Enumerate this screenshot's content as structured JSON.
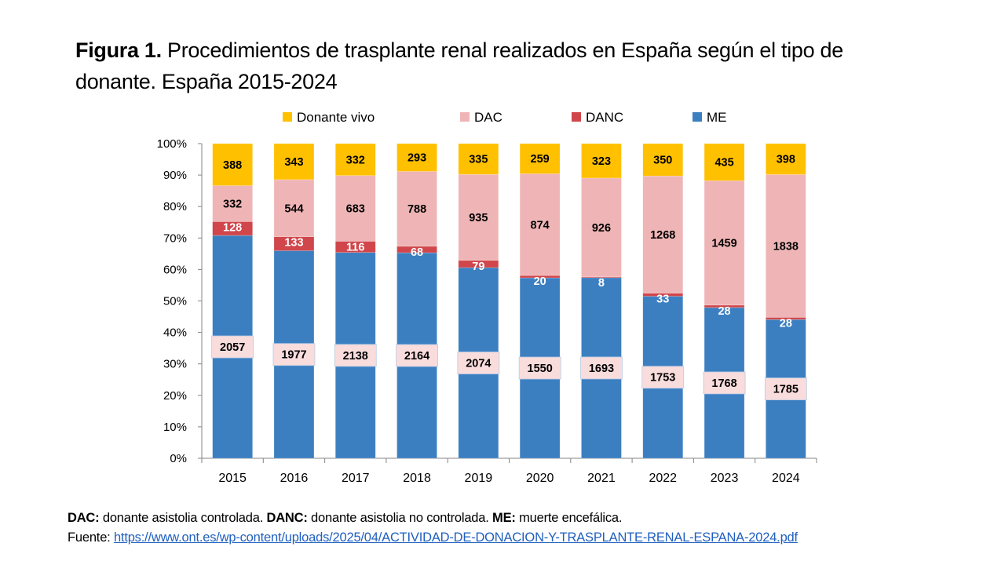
{
  "title": {
    "bold": "Figura 1.",
    "text": " Procedimientos de trasplante renal realizados en España según el tipo de donante. España 2015-2024"
  },
  "chart_data": {
    "type": "bar",
    "stacked": "percent",
    "title": "Procedimientos de trasplante renal realizados en España según el tipo de donante. España 2015-2024",
    "xlabel": "",
    "ylabel": "",
    "ylim": [
      0,
      100
    ],
    "ytick_labels": [
      "0%",
      "10%",
      "20%",
      "30%",
      "40%",
      "50%",
      "60%",
      "70%",
      "80%",
      "90%",
      "100%"
    ],
    "legend_position": "top",
    "categories": [
      "2015",
      "2016",
      "2017",
      "2018",
      "2019",
      "2020",
      "2021",
      "2022",
      "2023",
      "2024"
    ],
    "series": [
      {
        "name": "ME",
        "color": "#3c7fc1",
        "label_color": "#000000",
        "label_bg": "#f9dcdc",
        "values": [
          2057,
          1977,
          2138,
          2164,
          2074,
          1550,
          1693,
          1753,
          1768,
          1785
        ]
      },
      {
        "name": "DANC",
        "color": "#d0464b",
        "label_color": "#ffffff",
        "values": [
          128,
          133,
          116,
          68,
          79,
          20,
          8,
          33,
          28,
          28
        ]
      },
      {
        "name": "DAC",
        "color": "#efb5b6",
        "label_color": "#000000",
        "values": [
          332,
          544,
          683,
          788,
          935,
          874,
          926,
          1268,
          1459,
          1838
        ]
      },
      {
        "name": "Donante vivo",
        "color": "#ffc000",
        "label_color": "#000000",
        "values": [
          388,
          343,
          332,
          293,
          335,
          259,
          323,
          350,
          435,
          398
        ]
      }
    ],
    "legend_order": [
      "Donante vivo",
      "DAC",
      "DANC",
      "ME"
    ],
    "grid": false
  },
  "footer": {
    "line1": [
      {
        "bold": "DAC:",
        "text": " donante asistolia controlada. "
      },
      {
        "bold": "DANC:",
        "text": " donante asistolia no controlada.  "
      },
      {
        "bold": "ME:",
        "text": " muerte encefálica."
      }
    ],
    "source_label": "Fuente: ",
    "source_link": "https://www.ont.es/wp-content/uploads/2025/04/ACTIVIDAD-DE-DONACION-Y-TRASPLANTE-RENAL-ESPANA-2024.pdf"
  }
}
